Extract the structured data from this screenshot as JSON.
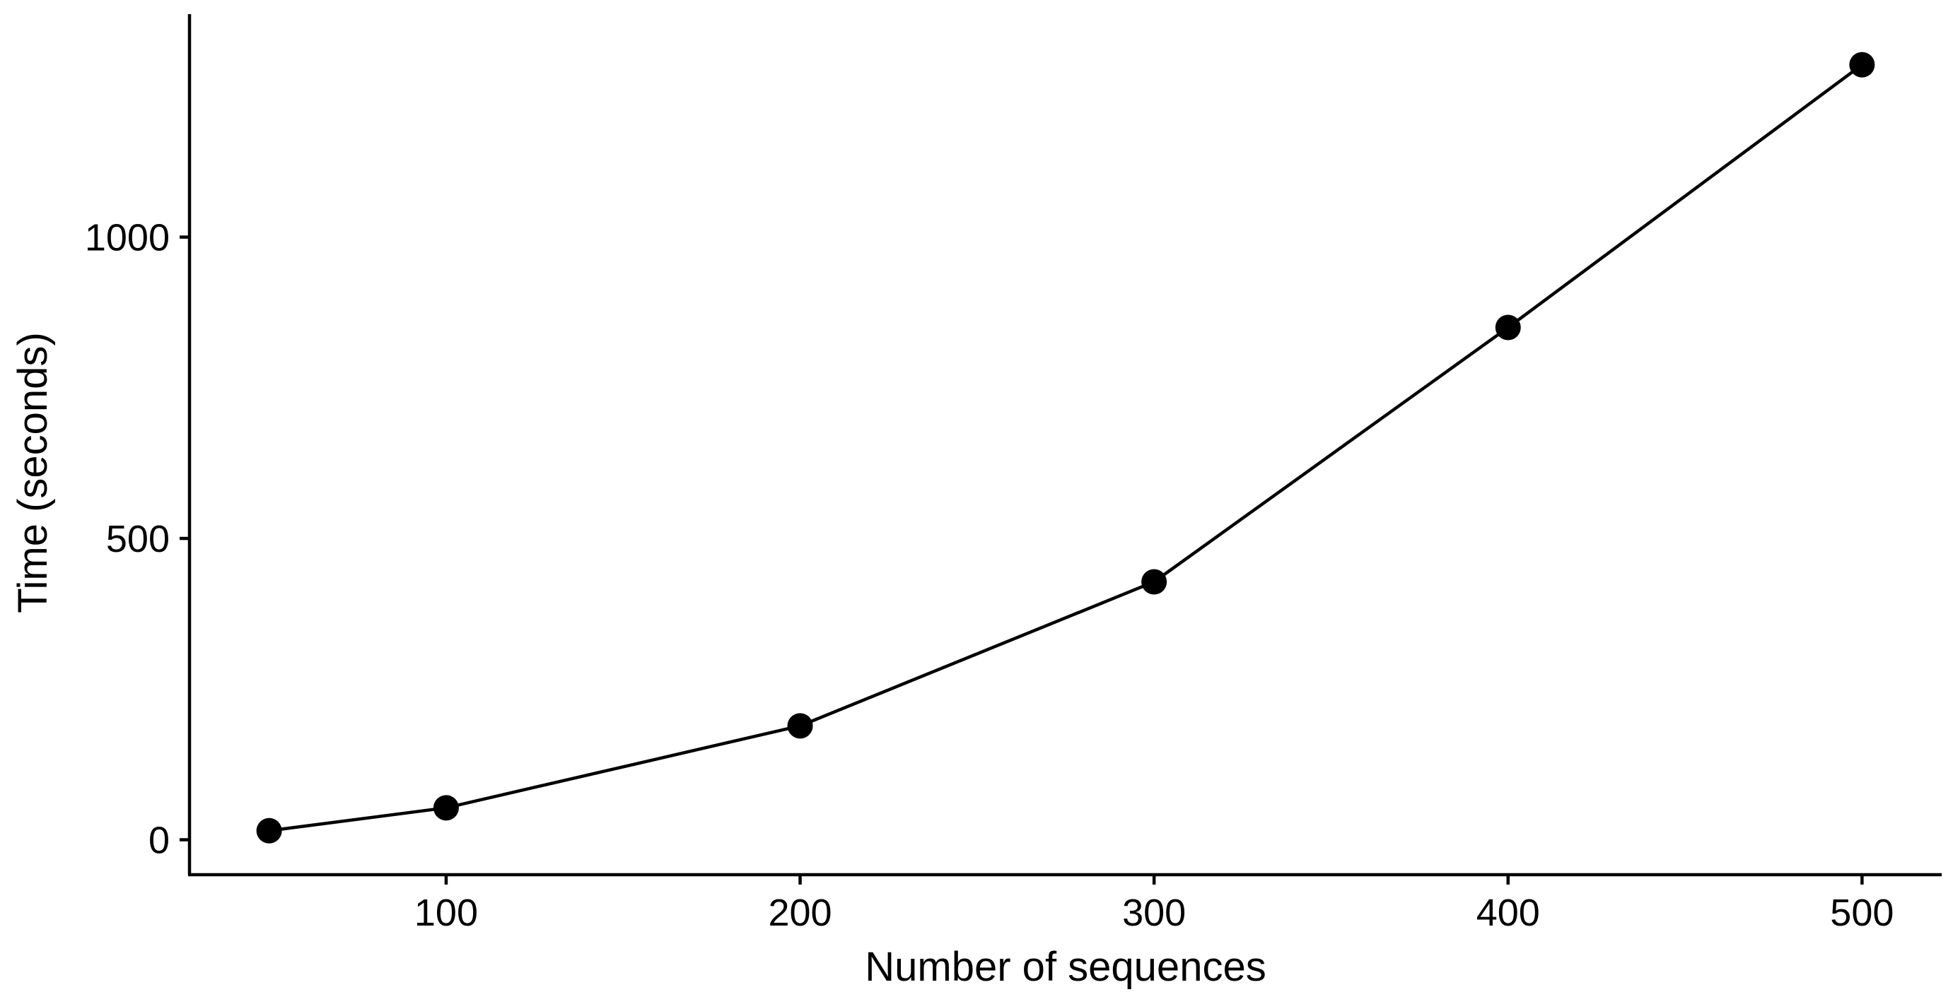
{
  "chart_data": {
    "type": "line",
    "xlabel": "Number of sequences",
    "ylabel": "Time (seconds)",
    "x_ticks": [
      "100",
      "200",
      "300",
      "400",
      "500"
    ],
    "y_ticks": [
      "0",
      "500",
      "1000"
    ],
    "xlim": [
      27.5,
      522.5
    ],
    "ylim": [
      -58,
      1370
    ],
    "grid": false,
    "series": [
      {
        "color": "#000000",
        "points": [
          {
            "x": 50,
            "y": 15
          },
          {
            "x": 100,
            "y": 53
          },
          {
            "x": 200,
            "y": 189
          },
          {
            "x": 300,
            "y": 428
          },
          {
            "x": 400,
            "y": 850
          },
          {
            "x": 500,
            "y": 1286
          }
        ]
      }
    ]
  }
}
